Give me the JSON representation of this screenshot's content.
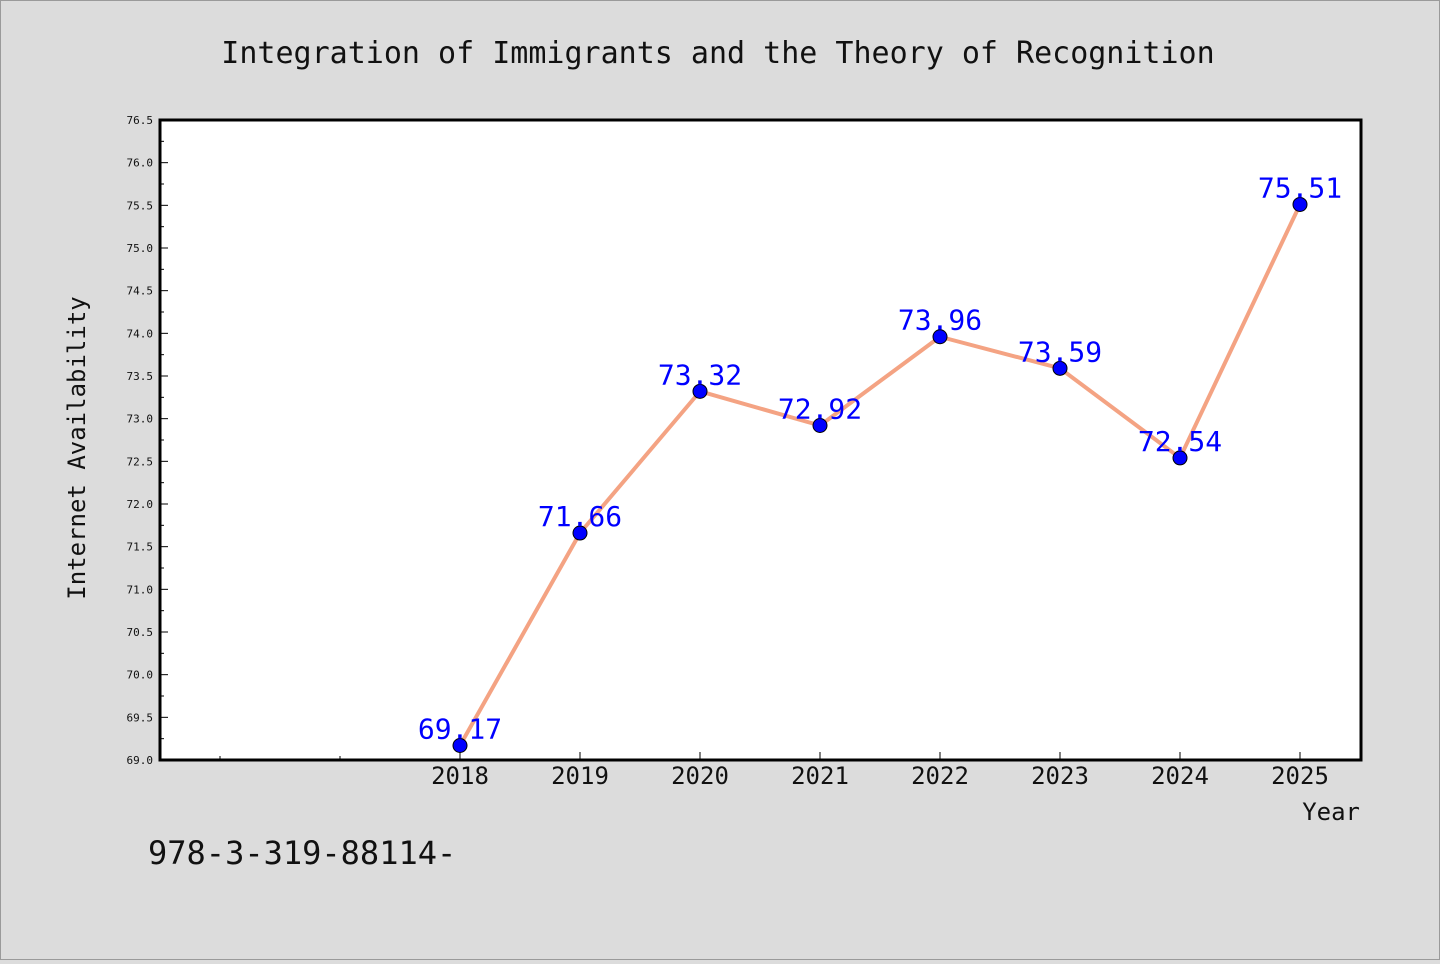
{
  "chart_data": {
    "type": "line",
    "title": "Integration of Immigrants and the Theory of Recognition",
    "xlabel": "Year",
    "ylabel": "Internet Availability",
    "x": [
      "2018",
      "2019",
      "2020",
      "2021",
      "2022",
      "2023",
      "2024",
      "2025"
    ],
    "series": [
      {
        "values": [
          69.17,
          71.66,
          73.32,
          72.92,
          73.96,
          73.59,
          72.54,
          75.51
        ],
        "data_labels": [
          "69.17",
          "71.66",
          "73.32",
          "72.92",
          "73.96",
          "73.59",
          "72.54",
          "75.51"
        ]
      }
    ],
    "ylim": [
      69.0,
      76.5
    ],
    "yticks": [
      "69.0",
      "69.5",
      "70.0",
      "70.5",
      "71.0",
      "71.5",
      "72.0",
      "72.5",
      "73.0",
      "73.5",
      "74.0",
      "74.5",
      "75.0",
      "75.5",
      "76.0",
      "76.5"
    ],
    "grid": false,
    "line_color": "#f4a383",
    "marker_color": "#0000ff",
    "label_color": "#0000ff"
  },
  "footer": {
    "code": "978-3-319-88114-"
  }
}
